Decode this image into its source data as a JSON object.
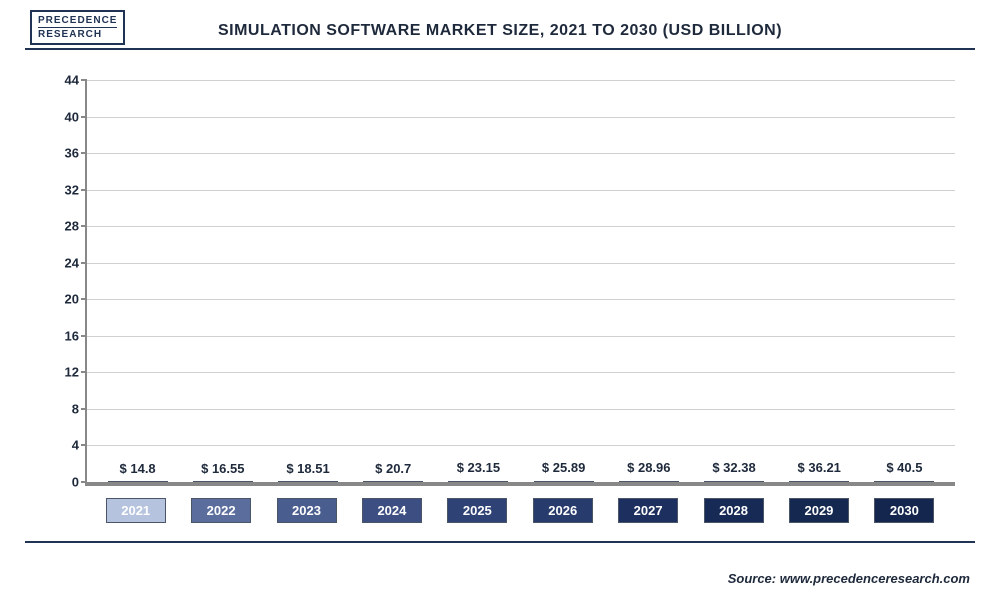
{
  "logo": {
    "top": "PRECEDENCE",
    "bottom": "RESEARCH"
  },
  "title": "SIMULATION SOFTWARE MARKET SIZE, 2021 TO 2030 (USD BILLION)",
  "source": "Source: www.precedenceresearch.com",
  "chart": {
    "type": "bar",
    "ymin": 0,
    "ymax": 44,
    "ytick_step": 4,
    "grid_color": "#d0d0d0",
    "axis_color": "#888888",
    "background_color": "#ffffff",
    "label_fontsize": 13,
    "categories": [
      "2021",
      "2022",
      "2023",
      "2024",
      "2025",
      "2026",
      "2027",
      "2028",
      "2029",
      "2030"
    ],
    "values": [
      14.8,
      16.55,
      18.51,
      20.7,
      23.15,
      25.89,
      28.96,
      32.38,
      36.21,
      40.5
    ],
    "value_labels": [
      "$ 14.8",
      "$ 16.55",
      "$ 18.51",
      "$ 20.7",
      "$ 23.15",
      "$ 25.89",
      "$ 28.96",
      "$ 32.38",
      "$ 36.21",
      "$ 40.5"
    ],
    "bar_colors": [
      "#b6c3de",
      "#5a6d9c",
      "#4a5d8f",
      "#3c4e82",
      "#2f4275",
      "#283b6d",
      "#1d2f5e",
      "#172a56",
      "#152850",
      "#14264d"
    ]
  }
}
